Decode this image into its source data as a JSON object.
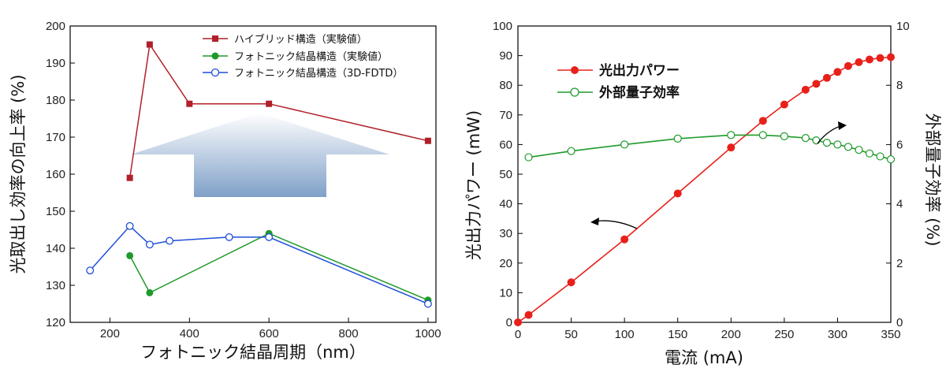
{
  "chart_data": [
    {
      "type": "line",
      "xlabel": "フォトニック結晶周期（nm）",
      "ylabel": "光取出し効率の向上率 (%)",
      "xlim": [
        100,
        1020
      ],
      "ylim": [
        120,
        200
      ],
      "xticks": [
        "200",
        "400",
        "600",
        "800",
        "1000"
      ],
      "yticks": [
        "120",
        "130",
        "140",
        "150",
        "160",
        "170",
        "180",
        "190",
        "200"
      ],
      "legend_position": "top-right",
      "series": [
        {
          "name": "ハイブリッド構造（実験値）",
          "color": "#b0202a",
          "marker": "square",
          "x": [
            250,
            300,
            400,
            600,
            1000
          ],
          "y": [
            159,
            195,
            179,
            179,
            169
          ]
        },
        {
          "name": "フォトニック結晶構造（実験値）",
          "color": "#1f9a2a",
          "marker": "circle-filled",
          "x": [
            250,
            300,
            600,
            1000
          ],
          "y": [
            138,
            128,
            144,
            126
          ]
        },
        {
          "name": "フォトニック結晶構造（3D-FDTD）",
          "color": "#1f4fd8",
          "marker": "circle-open",
          "x": [
            150,
            250,
            300,
            350,
            500,
            600,
            1000
          ],
          "y": [
            134,
            146,
            141,
            142,
            143,
            143,
            125
          ]
        }
      ]
    },
    {
      "type": "line",
      "xlabel": "電流 (mA)",
      "ylabel": "光出力パワー (mW)",
      "y2label": "外部量子効率 (%)",
      "xlim": [
        0,
        350
      ],
      "ylim": [
        0,
        100
      ],
      "y2lim": [
        0,
        10
      ],
      "xticks": [
        "0",
        "50",
        "100",
        "150",
        "200",
        "250",
        "300",
        "350"
      ],
      "yticks": [
        "0",
        "10",
        "20",
        "30",
        "40",
        "50",
        "60",
        "70",
        "80",
        "90",
        "100"
      ],
      "y2ticks": [
        "0",
        "2",
        "4",
        "6",
        "8",
        "10"
      ],
      "legend_position": "top-left",
      "series": [
        {
          "name": "光出力パワー",
          "color": "#e8201a",
          "marker": "circle-filled",
          "axis": "left",
          "x": [
            0,
            10,
            50,
            100,
            150,
            200,
            230,
            250,
            270,
            280,
            290,
            300,
            310,
            320,
            330,
            340,
            350
          ],
          "y": [
            0,
            2.5,
            13.5,
            28,
            43.5,
            59,
            68,
            73.5,
            78.5,
            80.5,
            82.5,
            84.5,
            86.5,
            87.8,
            88.7,
            89.2,
            89.5
          ]
        },
        {
          "name": "外部量子効率",
          "color": "#1f9a2a",
          "marker": "circle-open",
          "axis": "right",
          "x": [
            10,
            50,
            100,
            150,
            200,
            230,
            250,
            270,
            280,
            290,
            300,
            310,
            320,
            330,
            340,
            350
          ],
          "y": [
            5.57,
            5.78,
            6.0,
            6.2,
            6.32,
            6.32,
            6.28,
            6.22,
            6.14,
            6.06,
            6.0,
            5.92,
            5.82,
            5.7,
            5.6,
            5.5
          ]
        }
      ]
    }
  ]
}
